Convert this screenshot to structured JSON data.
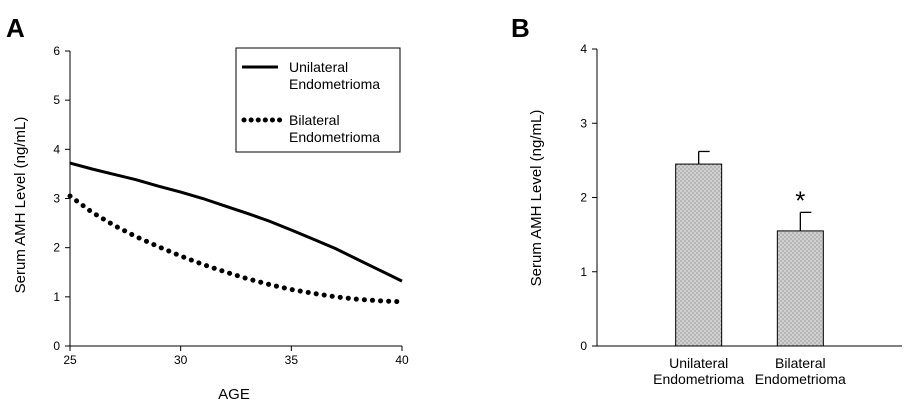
{
  "chart_data": [
    {
      "panel": "A",
      "type": "line",
      "xlabel": "AGE",
      "ylabel": "Serum AMH Level (ng/mL)",
      "xlim": [
        25,
        40
      ],
      "ylim": [
        0,
        6
      ],
      "xticks": [
        25,
        30,
        35,
        40
      ],
      "yticks": [
        0,
        1,
        2,
        3,
        4,
        5,
        6
      ],
      "grid": false,
      "legend_position": "top-right",
      "series": [
        {
          "name": "Unilateral\nEndometrioma",
          "legend_lines": [
            "Unilateral",
            "Endometrioma"
          ],
          "style": "solid",
          "x": [
            25,
            26,
            27,
            28,
            29,
            30,
            31,
            32,
            33,
            34,
            35,
            36,
            37,
            38,
            39,
            40
          ],
          "y": [
            3.72,
            3.6,
            3.49,
            3.38,
            3.25,
            3.13,
            3.0,
            2.85,
            2.7,
            2.54,
            2.36,
            2.17,
            1.98,
            1.76,
            1.54,
            1.32
          ]
        },
        {
          "name": "Bilateral\nEndometrioma",
          "legend_lines": [
            "Bilateral",
            "Endometrioma"
          ],
          "style": "dotted",
          "x": [
            25,
            26,
            27,
            28,
            29,
            30,
            31,
            32,
            33,
            34,
            35,
            36,
            37,
            38,
            39,
            40
          ],
          "y": [
            3.05,
            2.72,
            2.45,
            2.22,
            2.02,
            1.83,
            1.66,
            1.51,
            1.37,
            1.25,
            1.15,
            1.07,
            1.0,
            0.95,
            0.92,
            0.9
          ]
        }
      ]
    },
    {
      "panel": "B",
      "type": "bar",
      "xlabel": "",
      "ylabel": "Serum AMH Level (ng/mL)",
      "ylim": [
        0,
        4
      ],
      "yticks": [
        0,
        1,
        2,
        3,
        4
      ],
      "grid": false,
      "categories": [
        "Unilateral\nEndometrioma",
        "Bilateral\nEndometrioma"
      ],
      "category_lines": [
        [
          "Unilateral",
          "Endometrioma"
        ],
        [
          "Bilateral",
          "Endometrioma"
        ]
      ],
      "values": [
        2.45,
        1.55
      ],
      "error": [
        0.17,
        0.25
      ],
      "annotations": [
        {
          "category_index": 1,
          "text": "*"
        }
      ]
    }
  ]
}
